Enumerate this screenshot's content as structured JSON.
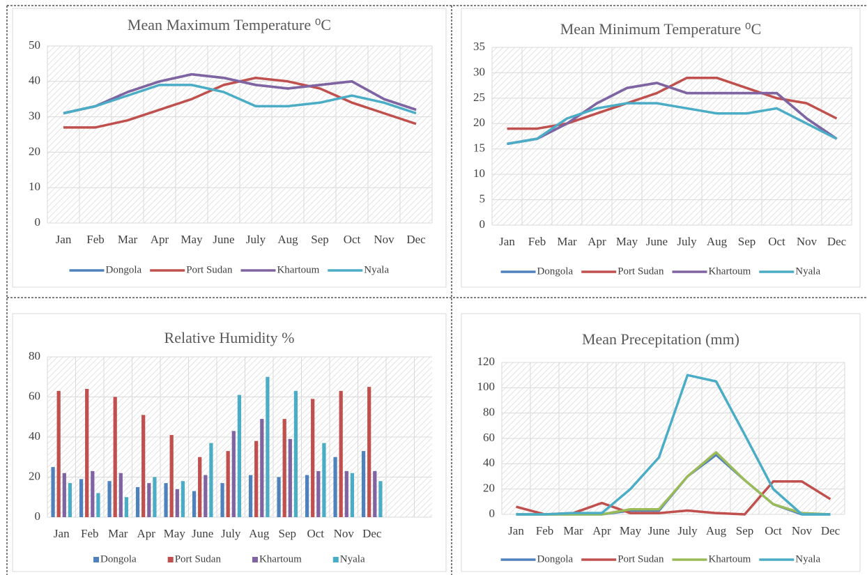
{
  "chart_data": [
    {
      "type": "line",
      "title": "Mean Maximum Temperature ⁰C",
      "categories": [
        "Jan",
        "Feb",
        "Mar",
        "Apr",
        "May",
        "June",
        "July",
        "Aug",
        "Sep",
        "Oct",
        "Nov",
        "Dec"
      ],
      "ylim": [
        0,
        50
      ],
      "yticks": [
        0,
        10,
        20,
        30,
        40,
        50
      ],
      "grid": true,
      "legend": "bottom",
      "series": [
        {
          "name": "Dongola",
          "color": "#4f81bd",
          "values": [
            31,
            33,
            37,
            40,
            42,
            41,
            39,
            38,
            39,
            40,
            35,
            32
          ]
        },
        {
          "name": "Port Sudan",
          "color": "#c0504d",
          "values": [
            27,
            27,
            29,
            32,
            35,
            39,
            41,
            40,
            38,
            34,
            31,
            28
          ]
        },
        {
          "name": "Khartoum",
          "color": "#8064a2",
          "values": [
            31,
            33,
            37,
            40,
            42,
            41,
            39,
            38,
            39,
            40,
            35,
            32
          ]
        },
        {
          "name": "Nyala",
          "color": "#4bacc6",
          "values": [
            31,
            33,
            36,
            39,
            39,
            37,
            33,
            33,
            34,
            36,
            34,
            31
          ]
        }
      ]
    },
    {
      "type": "line",
      "title": "Mean Minimum Temperature ⁰C",
      "categories": [
        "Jan",
        "Feb",
        "Mar",
        "Apr",
        "May",
        "June",
        "July",
        "Aug",
        "Sep",
        "Oct",
        "Nov",
        "Dec"
      ],
      "ylim": [
        0,
        35
      ],
      "yticks": [
        0,
        5,
        10,
        15,
        20,
        25,
        30,
        35
      ],
      "grid": true,
      "legend": "bottom",
      "series": [
        {
          "name": "Dongola",
          "color": "#4f81bd",
          "values": [
            16,
            17,
            20,
            24,
            27,
            28,
            26,
            26,
            26,
            26,
            21,
            17
          ]
        },
        {
          "name": "Port Sudan",
          "color": "#c0504d",
          "values": [
            19,
            19,
            20,
            22,
            24,
            26,
            29,
            29,
            27,
            25,
            24,
            21
          ]
        },
        {
          "name": "Khartoum",
          "color": "#8064a2",
          "values": [
            16,
            17,
            20,
            24,
            27,
            28,
            26,
            26,
            26,
            26,
            21,
            17
          ]
        },
        {
          "name": "Nyala",
          "color": "#4bacc6",
          "values": [
            16,
            17,
            21,
            23,
            24,
            24,
            23,
            22,
            22,
            23,
            20,
            17
          ]
        }
      ]
    },
    {
      "type": "bar",
      "title": "Relative Humidity %",
      "categories": [
        "Jan",
        "Feb",
        "Mar",
        "Apr",
        "May",
        "June",
        "July",
        "Aug",
        "Sep",
        "Oct",
        "Nov",
        "Dec"
      ],
      "ylim": [
        0,
        80
      ],
      "yticks": [
        0,
        20,
        40,
        60,
        80
      ],
      "grid": true,
      "legend": "bottom",
      "series": [
        {
          "name": "Dongola",
          "color": "#4f81bd",
          "values": [
            25,
            19,
            18,
            15,
            17,
            13,
            17,
            21,
            20,
            21,
            30,
            33
          ]
        },
        {
          "name": "Port Sudan",
          "color": "#c0504d",
          "values": [
            63,
            64,
            60,
            51,
            41,
            30,
            33,
            38,
            49,
            59,
            63,
            65
          ]
        },
        {
          "name": "Khartoum",
          "color": "#8064a2",
          "values": [
            22,
            23,
            22,
            17,
            14,
            21,
            43,
            49,
            39,
            23,
            23,
            23
          ]
        },
        {
          "name": "Nyala",
          "color": "#4bacc6",
          "values": [
            17,
            12,
            10,
            20,
            18,
            37,
            61,
            70,
            63,
            37,
            22,
            18
          ]
        }
      ]
    },
    {
      "type": "line",
      "title": "Mean Precepitation (mm)",
      "categories": [
        "Jan",
        "Feb",
        "Mar",
        "Apr",
        "May",
        "June",
        "July",
        "Aug",
        "Sep",
        "Oct",
        "Nov",
        "Dec"
      ],
      "ylim": [
        0,
        120
      ],
      "yticks": [
        0,
        20,
        40,
        60,
        80,
        100,
        120
      ],
      "grid": true,
      "legend": "bottom",
      "series": [
        {
          "name": "Dongola",
          "color": "#4f81bd",
          "values": [
            0,
            0,
            0,
            0,
            3,
            3,
            30,
            47,
            27,
            8,
            0,
            0
          ]
        },
        {
          "name": "Port Sudan",
          "color": "#c0504d",
          "values": [
            6,
            0,
            1,
            9,
            1,
            1,
            3,
            1,
            0,
            26,
            26,
            12
          ]
        },
        {
          "name": "Khartoum",
          "color": "#9bbb59",
          "values": [
            0,
            0,
            0,
            0,
            4,
            4,
            30,
            49,
            27,
            8,
            1,
            0
          ]
        },
        {
          "name": "Nyala",
          "color": "#4bacc6",
          "values": [
            0,
            0,
            1,
            1,
            20,
            45,
            110,
            105,
            63,
            20,
            0,
            0
          ]
        }
      ]
    }
  ]
}
